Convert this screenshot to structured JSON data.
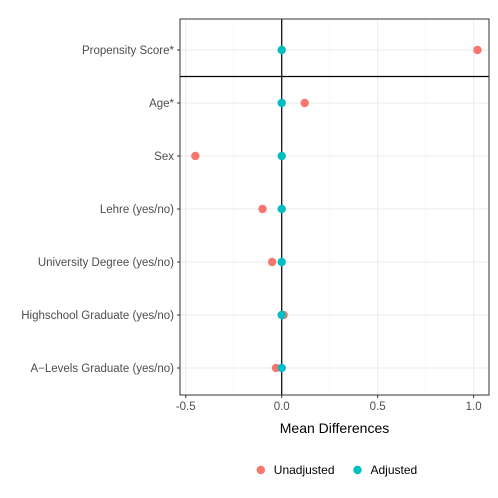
{
  "chart_data": {
    "type": "scatter",
    "xlabel": "Mean Differences",
    "xlim": [
      -0.53,
      1.08
    ],
    "x_ticks": [
      -0.5,
      0.0,
      0.5,
      1.0
    ],
    "x_tick_labels": [
      "-0.5",
      "0.0",
      "0.5",
      "1.0"
    ],
    "categories": [
      "Propensity Score*",
      "Age*",
      "Sex",
      "Lehre (yes/no)",
      "University Degree (yes/no)",
      "Highschool Graduate (yes/no)",
      "A−Levels Graduate (yes/no)"
    ],
    "series": [
      {
        "name": "Unadjusted",
        "color": "#F8766D",
        "values": [
          1.02,
          0.12,
          -0.45,
          -0.1,
          -0.05,
          0.01,
          -0.03
        ]
      },
      {
        "name": "Adjusted",
        "color": "#00BFC4",
        "values": [
          0.0,
          0.0,
          0.0,
          0.0,
          0.0,
          0.0,
          0.0
        ]
      }
    ],
    "reference_line_x": 0,
    "separator_after_first_category": true,
    "grid": true,
    "legend_position": "bottom"
  }
}
